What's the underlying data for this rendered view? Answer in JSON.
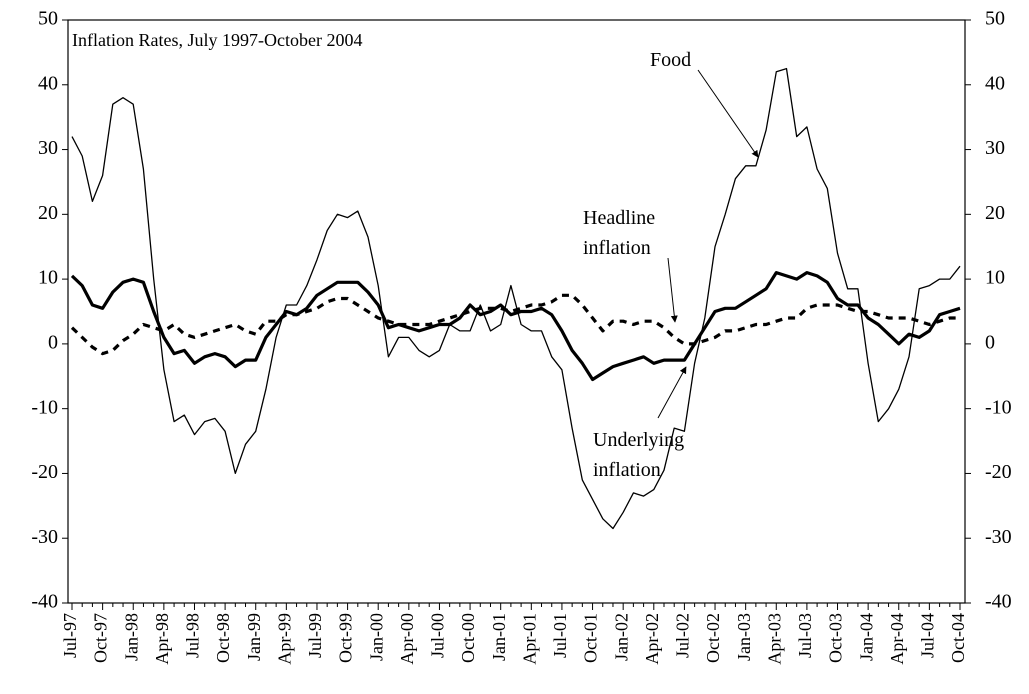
{
  "chart_data": {
    "type": "line",
    "title": "Inflation Rates, July 1997-October 2004",
    "categories": [
      "Jul-97",
      null,
      null,
      "Oct-97",
      null,
      null,
      "Jan-98",
      null,
      null,
      "Apr-98",
      null,
      null,
      "Jul-98",
      null,
      null,
      "Oct-98",
      null,
      null,
      "Jan-99",
      null,
      null,
      "Apr-99",
      null,
      null,
      "Jul-99",
      null,
      null,
      "Oct-99",
      null,
      null,
      "Jan-00",
      null,
      null,
      "Apr-00",
      null,
      null,
      "Jul-00",
      null,
      null,
      "Oct-00",
      null,
      null,
      "Jan-01",
      null,
      null,
      "Apr-01",
      null,
      null,
      "Jul-01",
      null,
      null,
      "Oct-01",
      null,
      null,
      "Jan-02",
      null,
      null,
      "Apr-02",
      null,
      null,
      "Jul-02",
      null,
      null,
      "Oct-02",
      null,
      null,
      "Jan-03",
      null,
      null,
      "Apr-03",
      null,
      null,
      "Jul-03",
      null,
      null,
      "Oct-03",
      null,
      null,
      "Jan-04",
      null,
      null,
      "Apr-04",
      null,
      null,
      "Jul-04",
      null,
      null,
      "Oct-04"
    ],
    "series": [
      {
        "name": "Food",
        "color": "#000000",
        "style": "thin",
        "values": [
          32,
          29,
          22,
          26,
          37,
          38,
          37,
          27,
          10,
          -4,
          -12,
          -11,
          -14,
          -12,
          -11.5,
          -13.5,
          -20,
          -15.5,
          -13.5,
          -7,
          1,
          6,
          6,
          9,
          13,
          17.5,
          20,
          19.5,
          20.5,
          16.5,
          9,
          -2,
          1,
          1,
          -1,
          -2,
          -1,
          3,
          2,
          2,
          6,
          2,
          3,
          9,
          3,
          2,
          2,
          -2,
          -4,
          -13,
          -21,
          -24,
          -27,
          -28.5,
          -26,
          -23,
          -23.5,
          -22.5,
          -19.5,
          -13,
          -13.5,
          -3,
          4,
          15,
          20,
          25.5,
          27.5,
          27.5,
          33,
          42,
          42.5,
          32,
          33.5,
          27,
          24,
          14,
          8.5,
          8.5,
          -3,
          -12,
          -10,
          -7,
          -2,
          8.5,
          9,
          10,
          10,
          12
        ]
      },
      {
        "name": "Headline inflation",
        "color": "#000000",
        "style": "thick",
        "values": [
          10.5,
          9,
          6,
          5.5,
          8,
          9.5,
          10,
          9.5,
          5,
          1,
          -1.5,
          -1,
          -3,
          -2,
          -1.5,
          -2,
          -3.5,
          -2.5,
          -2.5,
          1,
          3,
          5,
          4.5,
          5.5,
          7.5,
          8.5,
          9.5,
          9.5,
          9.5,
          8,
          6,
          2.5,
          3,
          2.5,
          2,
          2.5,
          3,
          3,
          4,
          6,
          4.5,
          5,
          6,
          4.5,
          5,
          5,
          5.5,
          4.5,
          2,
          -1,
          -3,
          -5.5,
          -4.5,
          -3.5,
          -3,
          -2.5,
          -2,
          -3,
          -2.5,
          -2.5,
          -2.5,
          0,
          2.5,
          5,
          5.5,
          5.5,
          6.5,
          7.5,
          8.5,
          11,
          10.5,
          10,
          11,
          10.5,
          9.5,
          7,
          6,
          6,
          4,
          3,
          1.5,
          0,
          1.5,
          1,
          2,
          4.5,
          5,
          5.5
        ]
      },
      {
        "name": "Underlying inflation",
        "color": "#000000",
        "style": "dashed",
        "values": [
          2.5,
          1,
          -0.5,
          -1.5,
          -1,
          0.5,
          1.5,
          3,
          2.5,
          2,
          3,
          1.5,
          1,
          1.5,
          2,
          2.5,
          3,
          2,
          1.5,
          3.5,
          3.5,
          4.5,
          4.5,
          5,
          5.5,
          6.5,
          7,
          7,
          6,
          5,
          4,
          3.5,
          3,
          3,
          3,
          3,
          3.5,
          4,
          4.5,
          5,
          5.5,
          5.5,
          5.5,
          5,
          5.5,
          6,
          6,
          6.5,
          7.5,
          7.5,
          6,
          4,
          2,
          3.5,
          3.5,
          3,
          3.5,
          3.5,
          2.5,
          1,
          0,
          0,
          0.5,
          1,
          2,
          2,
          2.5,
          3,
          3,
          3.5,
          4,
          4,
          5.5,
          6,
          6,
          6,
          5.5,
          5,
          5,
          4.5,
          4,
          4,
          4,
          3.5,
          3,
          3.5,
          4,
          4
        ]
      }
    ],
    "ylim": [
      -40,
      50
    ],
    "yticks": [
      -40,
      -30,
      -20,
      -10,
      0,
      10,
      20,
      30,
      40,
      50
    ],
    "y2lim": [
      -40,
      50
    ],
    "y2ticks": [
      -40,
      -30,
      -20,
      -10,
      0,
      10,
      20,
      30,
      40,
      50
    ],
    "grid": false
  }
}
